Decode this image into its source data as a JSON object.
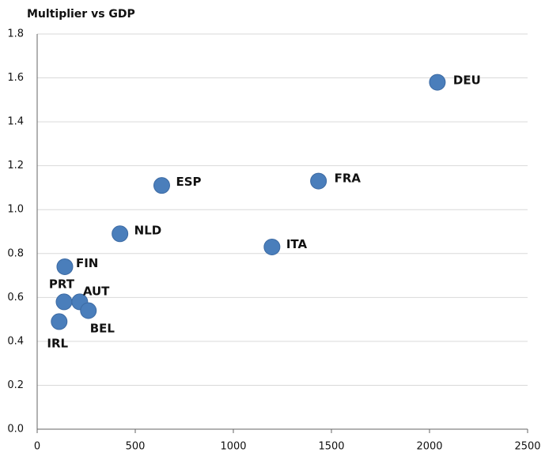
{
  "chart_data": {
    "type": "scatter",
    "title": "Multiplier vs GDP",
    "x": [
      2040,
      1434,
      635,
      1197,
      422,
      141,
      137,
      217,
      261,
      112
    ],
    "values": [
      1.58,
      1.13,
      1.11,
      0.83,
      0.89,
      0.74,
      0.58,
      0.58,
      0.54,
      0.49
    ],
    "labels": [
      "DEU",
      "FRA",
      "ESP",
      "ITA",
      "NLD",
      "FIN",
      "PRT",
      "AUT",
      "BEL",
      "IRL"
    ],
    "color": "#4a7ebb",
    "xlim": [
      0,
      2500
    ],
    "xticks": [
      0,
      500,
      1000,
      1500,
      2000,
      2500
    ],
    "ylim": [
      0,
      1.8
    ],
    "yticks": [
      {
        "value": 0,
        "label": "0.0"
      },
      0.2,
      0.4,
      0.6,
      0.8,
      {
        "value": 1,
        "label": "1.0"
      },
      1.2,
      1.4,
      1.6,
      1.8
    ],
    "grid": true
  }
}
